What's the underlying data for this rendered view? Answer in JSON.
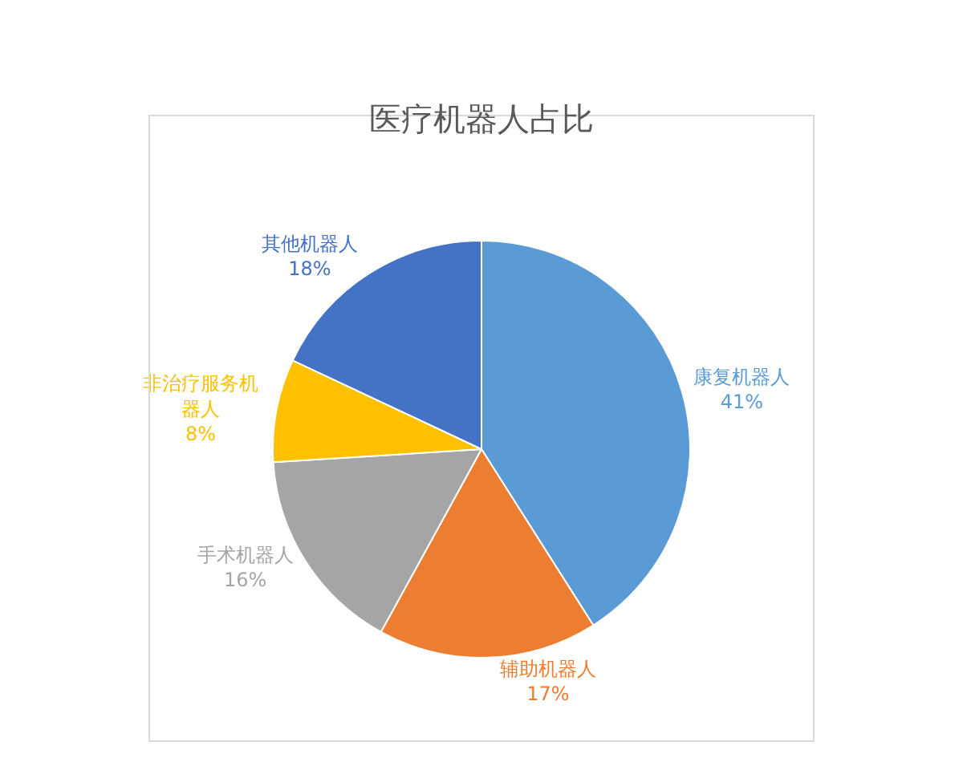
{
  "chart_data": {
    "type": "pie",
    "title": "医疗机器人占比",
    "categories": [
      "康复机器人",
      "辅助机器人",
      "手术机器人",
      "非治疗服务机器人",
      "其他机器人"
    ],
    "values": [
      41,
      17,
      16,
      8,
      18
    ],
    "value_labels": [
      "41%",
      "17%",
      "16%",
      "8%",
      "18%"
    ],
    "colors": [
      "#5b9bd5",
      "#ed7d31",
      "#a5a5a5",
      "#ffc000",
      "#4472c4"
    ],
    "legend": false
  }
}
